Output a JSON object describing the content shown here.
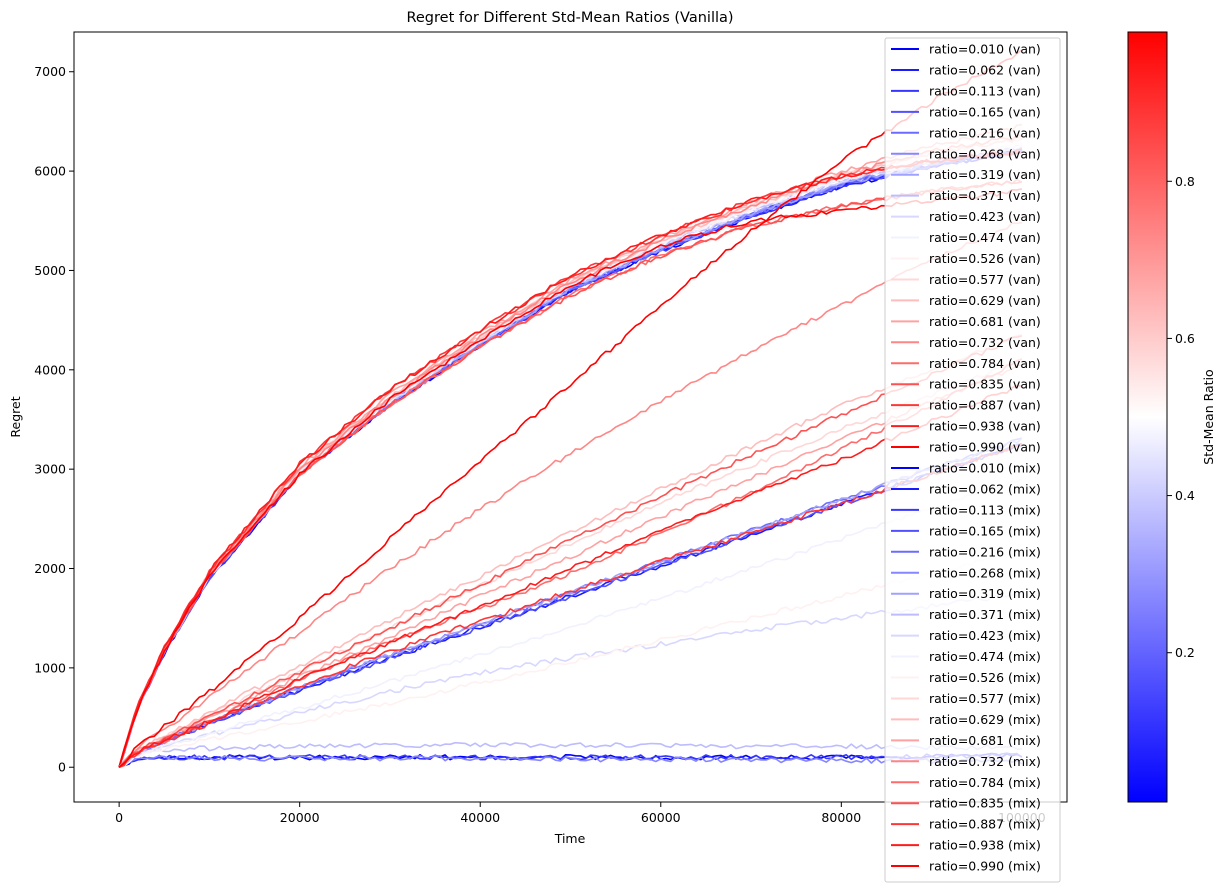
{
  "chart_data": {
    "type": "line",
    "title": "Regret for Different Std-Mean Ratios (Vanilla)",
    "xlabel": "Time",
    "ylabel": "Regret",
    "xlim": [
      -5000,
      105000
    ],
    "ylim": [
      -350,
      7400
    ],
    "x_ticks": [
      0,
      20000,
      40000,
      60000,
      80000,
      100000
    ],
    "x_tick_labels": [
      "0",
      "20000",
      "40000",
      "60000",
      "80000",
      "100000"
    ],
    "y_ticks": [
      0,
      1000,
      2000,
      3000,
      4000,
      5000,
      6000,
      7000
    ],
    "y_tick_labels": [
      "0",
      "1000",
      "2000",
      "3000",
      "4000",
      "5000",
      "6000",
      "7000"
    ],
    "x": [
      0,
      2000,
      5000,
      10000,
      20000,
      30000,
      40000,
      50000,
      60000,
      70000,
      80000,
      90000,
      100000
    ],
    "grid": false,
    "legend_position": "top-right",
    "colorbar": {
      "label": "Std-Mean Ratio",
      "range": [
        0.01,
        0.99
      ],
      "colors": [
        "#0000ff",
        "#ffffff",
        "#ff0000"
      ],
      "ticks": [
        0.2,
        0.4,
        0.6,
        0.8
      ],
      "tick_labels": [
        "0.2",
        "0.4",
        "0.6",
        "0.8"
      ]
    },
    "series": [
      {
        "name": "ratio=0.010 (van)",
        "ratio": 0.01,
        "values": [
          0,
          580,
          1150,
          1900,
          2950,
          3650,
          4250,
          4800,
          5200,
          5550,
          5850,
          6050,
          6200
        ]
      },
      {
        "name": "ratio=0.062 (van)",
        "ratio": 0.062,
        "values": [
          0,
          580,
          1150,
          1900,
          2950,
          3650,
          4250,
          4800,
          5200,
          5550,
          5850,
          6050,
          6200
        ]
      },
      {
        "name": "ratio=0.113 (van)",
        "ratio": 0.113,
        "values": [
          0,
          580,
          1150,
          1900,
          2950,
          3650,
          4250,
          4800,
          5200,
          5550,
          5850,
          6050,
          6200
        ]
      },
      {
        "name": "ratio=0.165 (van)",
        "ratio": 0.165,
        "values": [
          0,
          585,
          1160,
          1910,
          2960,
          3660,
          4260,
          4810,
          5210,
          5560,
          5860,
          6060,
          6210
        ]
      },
      {
        "name": "ratio=0.216 (van)",
        "ratio": 0.216,
        "values": [
          0,
          585,
          1160,
          1910,
          2960,
          3660,
          4260,
          4810,
          5210,
          5560,
          5860,
          6060,
          6210
        ]
      },
      {
        "name": "ratio=0.268 (van)",
        "ratio": 0.268,
        "values": [
          0,
          590,
          1170,
          1920,
          2970,
          3670,
          4270,
          4820,
          5220,
          5570,
          5870,
          6080,
          6230
        ]
      },
      {
        "name": "ratio=0.319 (van)",
        "ratio": 0.319,
        "values": [
          0,
          590,
          1170,
          1920,
          2970,
          3670,
          4270,
          4820,
          5220,
          5570,
          5870,
          6080,
          6230
        ]
      },
      {
        "name": "ratio=0.371 (van)",
        "ratio": 0.371,
        "values": [
          0,
          590,
          1170,
          1920,
          2970,
          3680,
          4290,
          4840,
          5250,
          5600,
          5900,
          6100,
          6250
        ]
      },
      {
        "name": "ratio=0.423 (van)",
        "ratio": 0.423,
        "values": [
          0,
          590,
          1170,
          1920,
          2970,
          3680,
          4290,
          4840,
          5250,
          5600,
          5900,
          6100,
          6250
        ]
      },
      {
        "name": "ratio=0.474 (van)",
        "ratio": 0.474,
        "values": [
          0,
          595,
          1180,
          1930,
          2980,
          3690,
          4300,
          4850,
          5270,
          5620,
          5920,
          6120,
          6270
        ]
      },
      {
        "name": "ratio=0.526 (van)",
        "ratio": 0.526,
        "values": [
          0,
          595,
          1180,
          1930,
          2980,
          3690,
          4300,
          4850,
          5270,
          5620,
          5920,
          6120,
          6270
        ]
      },
      {
        "name": "ratio=0.577 (van)",
        "ratio": 0.577,
        "values": [
          0,
          600,
          1190,
          1950,
          3000,
          3720,
          4330,
          4880,
          5300,
          5650,
          5960,
          6180,
          6330
        ]
      },
      {
        "name": "ratio=0.629 (van)",
        "ratio": 0.629,
        "values": [
          0,
          600,
          1190,
          1950,
          3000,
          3720,
          4330,
          4880,
          5300,
          5650,
          5960,
          6180,
          6330
        ]
      },
      {
        "name": "ratio=0.681 (van)",
        "ratio": 0.681,
        "values": [
          0,
          600,
          1200,
          1960,
          3020,
          3750,
          4360,
          4910,
          5320,
          5680,
          6000,
          6250,
          6450
        ]
      },
      {
        "name": "ratio=0.732 (van)",
        "ratio": 0.732,
        "values": [
          0,
          595,
          1190,
          1950,
          3000,
          3720,
          4330,
          4880,
          5300,
          5650,
          5960,
          6200,
          6350
        ]
      },
      {
        "name": "ratio=0.784 (van)",
        "ratio": 0.784,
        "values": [
          0,
          590,
          1170,
          1920,
          2950,
          3650,
          4230,
          4750,
          5150,
          5450,
          5650,
          5800,
          5900
        ]
      },
      {
        "name": "ratio=0.835 (van)",
        "ratio": 0.835,
        "values": [
          0,
          590,
          1170,
          1920,
          2950,
          3650,
          4230,
          4750,
          5150,
          5450,
          5650,
          5800,
          5900
        ]
      },
      {
        "name": "ratio=0.887 (van)",
        "ratio": 0.887,
        "values": [
          0,
          600,
          1200,
          1970,
          3050,
          3800,
          4400,
          4950,
          5350,
          5700,
          5950,
          6100,
          6200
        ]
      },
      {
        "name": "ratio=0.938 (van)",
        "ratio": 0.938,
        "values": [
          0,
          600,
          1200,
          1970,
          3050,
          3800,
          4400,
          4950,
          5350,
          5700,
          5950,
          6100,
          6200
        ]
      },
      {
        "name": "ratio=0.990 (van)",
        "ratio": 0.99,
        "values": [
          0,
          590,
          1170,
          1920,
          2950,
          3700,
          4300,
          4850,
          5250,
          5500,
          5600,
          5700,
          5800
        ]
      },
      {
        "name": "ratio=0.010 (mix)",
        "ratio": 0.01,
        "values": [
          0,
          100,
          100,
          100,
          100,
          100,
          100,
          100,
          100,
          100,
          100,
          110,
          120
        ]
      },
      {
        "name": "ratio=0.062 (mix)",
        "ratio": 0.062,
        "values": [
          0,
          150,
          260,
          440,
          780,
          1100,
          1410,
          1720,
          2030,
          2340,
          2650,
          2950,
          3250
        ]
      },
      {
        "name": "ratio=0.113 (mix)",
        "ratio": 0.113,
        "values": [
          0,
          100,
          100,
          100,
          100,
          100,
          100,
          100,
          100,
          100,
          100,
          110,
          120
        ]
      },
      {
        "name": "ratio=0.165 (mix)",
        "ratio": 0.165,
        "values": [
          0,
          150,
          260,
          440,
          780,
          1100,
          1410,
          1720,
          2030,
          2340,
          2650,
          2950,
          3250
        ]
      },
      {
        "name": "ratio=0.216 (mix)",
        "ratio": 0.216,
        "values": [
          0,
          150,
          270,
          450,
          800,
          1130,
          1440,
          1760,
          2070,
          2380,
          2690,
          3000,
          3300
        ]
      },
      {
        "name": "ratio=0.268 (mix)",
        "ratio": 0.268,
        "values": [
          0,
          110,
          100,
          90,
          90,
          90,
          90,
          80,
          80,
          70,
          70,
          60,
          60
        ]
      },
      {
        "name": "ratio=0.319 (mix)",
        "ratio": 0.319,
        "values": [
          0,
          150,
          270,
          450,
          800,
          1130,
          1440,
          1760,
          2070,
          2380,
          2690,
          3000,
          3300
        ]
      },
      {
        "name": "ratio=0.371 (mix)",
        "ratio": 0.371,
        "values": [
          0,
          160,
          180,
          190,
          210,
          220,
          230,
          220,
          220,
          210,
          210,
          200,
          200
        ]
      },
      {
        "name": "ratio=0.423 (mix)",
        "ratio": 0.423,
        "values": [
          0,
          130,
          210,
          330,
          550,
          760,
          950,
          1100,
          1240,
          1380,
          1500,
          1620,
          1750
        ]
      },
      {
        "name": "ratio=0.474 (mix)",
        "ratio": 0.474,
        "values": [
          0,
          130,
          210,
          340,
          600,
          860,
          1130,
          1410,
          1700,
          2000,
          2300,
          2600,
          2900
        ]
      },
      {
        "name": "ratio=0.526 (mix)",
        "ratio": 0.526,
        "values": [
          0,
          120,
          180,
          280,
          460,
          650,
          850,
          1060,
          1280,
          1500,
          1720,
          1950,
          2180
        ]
      },
      {
        "name": "ratio=0.577 (mix)",
        "ratio": 0.577,
        "values": [
          0,
          170,
          300,
          520,
          960,
          1400,
          1830,
          2250,
          2660,
          3040,
          3400,
          3750,
          4100
        ]
      },
      {
        "name": "ratio=0.629 (mix)",
        "ratio": 0.629,
        "values": [
          0,
          170,
          310,
          550,
          1020,
          1480,
          1920,
          2370,
          2800,
          3230,
          3640,
          4000,
          4350
        ]
      },
      {
        "name": "ratio=0.681 (mix)",
        "ratio": 0.681,
        "values": [
          0,
          160,
          290,
          500,
          910,
          1310,
          1720,
          2120,
          2520,
          2910,
          3300,
          3680,
          4050
        ]
      },
      {
        "name": "ratio=0.732 (mix)",
        "ratio": 0.732,
        "values": [
          0,
          200,
          380,
          700,
          1360,
          2000,
          2600,
          3160,
          3680,
          4180,
          4650,
          5100,
          5500
        ]
      },
      {
        "name": "ratio=0.784 (mix)",
        "ratio": 0.784,
        "values": [
          0,
          150,
          260,
          460,
          880,
          1260,
          1600,
          1950,
          2350,
          2760,
          3200,
          3650,
          4100
        ]
      },
      {
        "name": "ratio=0.835 (mix)",
        "ratio": 0.835,
        "values": [
          0,
          160,
          290,
          510,
          960,
          1400,
          1840,
          2290,
          2720,
          3140,
          3550,
          3950,
          4350
        ]
      },
      {
        "name": "ratio=0.887 (mix)",
        "ratio": 0.887,
        "values": [
          0,
          150,
          260,
          440,
          820,
          1170,
          1470,
          1770,
          2070,
          2360,
          2650,
          2950,
          3250
        ]
      },
      {
        "name": "ratio=0.938 (mix)",
        "ratio": 0.938,
        "values": [
          0,
          150,
          270,
          460,
          880,
          1250,
          1620,
          2000,
          2380,
          2740,
          3100,
          3480,
          3850
        ]
      },
      {
        "name": "ratio=0.990 (mix)",
        "ratio": 0.99,
        "values": [
          0,
          200,
          410,
          760,
          1500,
          2300,
          3080,
          3850,
          4650,
          5400,
          6100,
          6700,
          7200
        ]
      }
    ]
  }
}
